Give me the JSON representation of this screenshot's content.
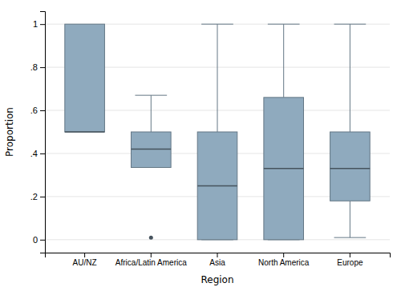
{
  "chart_data": {
    "type": "box",
    "categories": [
      "AU/NZ",
      "Africa/Latin America",
      "Asia",
      "North America",
      "Europe"
    ],
    "boxes": [
      {
        "q1": 0.5,
        "median": 0.5,
        "q3": 1.0,
        "whisker_low": null,
        "whisker_high": null,
        "outliers": []
      },
      {
        "q1": 0.335,
        "median": 0.42,
        "q3": 0.5,
        "whisker_low": null,
        "whisker_high": 0.67,
        "outliers": [
          0.01
        ]
      },
      {
        "q1": 0.0,
        "median": 0.25,
        "q3": 0.5,
        "whisker_low": 0.0,
        "whisker_high": 1.0,
        "outliers": []
      },
      {
        "q1": 0.0,
        "median": 0.33,
        "q3": 0.66,
        "whisker_low": 0.0,
        "whisker_high": 1.0,
        "outliers": []
      },
      {
        "q1": 0.18,
        "median": 0.33,
        "q3": 0.5,
        "whisker_low": 0.01,
        "whisker_high": 1.0,
        "outliers": []
      }
    ],
    "xlabel": "Region",
    "ylabel": "Proportion",
    "ylim": [
      -0.06,
      1.06
    ],
    "yticks": [
      0,
      {
        "value": 0.2,
        "label": ".2"
      },
      {
        "value": 0.4,
        "label": ".4"
      },
      {
        "value": 0.6,
        "label": ".6"
      },
      {
        "value": 0.8,
        "label": ".8"
      },
      1
    ],
    "color": "#8faabe",
    "grid": true
  }
}
